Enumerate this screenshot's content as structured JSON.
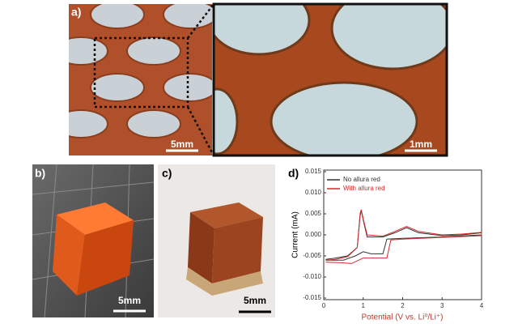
{
  "panels": {
    "a": {
      "label": "a)",
      "scale_left": "5mm",
      "scale_right": "1mm"
    },
    "b": {
      "label": "b)",
      "scale": "5mm"
    },
    "c": {
      "label": "c)",
      "scale": "5mm"
    },
    "d": {
      "label": "d)"
    }
  },
  "chart_data": {
    "type": "line",
    "xlabel": "Potential (V vs. Li⁰/Li⁺)",
    "ylabel": "Current (mA)",
    "xlim": [
      0,
      4
    ],
    "xticks": [
      0,
      1,
      2,
      3,
      4
    ],
    "ylim": [
      -0.015,
      0.015
    ],
    "yticks": [
      0.015,
      {
        "value": 0.01,
        "label": "0.010"
      },
      0.005,
      {
        "value": 0,
        "label": "0.000"
      },
      -0.005,
      {
        "value": -0.01,
        "label": "-0.010"
      },
      -0.015
    ],
    "legend": "upper left",
    "series": [
      {
        "name": "No allura red",
        "color": "#333333",
        "x": [
          0.05,
          0.3,
          0.6,
          0.85,
          0.92,
          0.95,
          1.0,
          1.1,
          1.5,
          1.8,
          2.1,
          2.4,
          3.0,
          3.5,
          4.0,
          4.0,
          3.0,
          2.0,
          1.6,
          1.5,
          1.2,
          1.0,
          0.8,
          0.5,
          0.05
        ],
        "values": [
          -0.0058,
          -0.0055,
          -0.005,
          -0.003,
          0.0045,
          0.0058,
          0.0035,
          -0.0005,
          -0.0005,
          0.0005,
          0.0017,
          0.0005,
          -0.0002,
          0.0,
          0.0005,
          0.0,
          -0.0005,
          -0.0008,
          -0.001,
          -0.0045,
          -0.0045,
          -0.004,
          -0.005,
          -0.006,
          -0.006
        ]
      },
      {
        "name": "With allura red",
        "color": "#d62728",
        "x": [
          0.05,
          0.3,
          0.6,
          0.85,
          0.92,
          0.95,
          1.0,
          1.1,
          1.5,
          1.8,
          2.1,
          2.4,
          3.0,
          3.5,
          4.0,
          4.0,
          3.0,
          2.0,
          1.7,
          1.6,
          1.3,
          1.0,
          0.7,
          0.4,
          0.05
        ],
        "values": [
          -0.006,
          -0.0058,
          -0.0052,
          -0.003,
          0.005,
          0.006,
          0.0038,
          0.0,
          -0.0003,
          0.0008,
          0.002,
          0.0008,
          0.0,
          0.0002,
          0.0006,
          -0.0002,
          -0.0006,
          -0.001,
          -0.0012,
          -0.0055,
          -0.0055,
          -0.0055,
          -0.0068,
          -0.0066,
          -0.0065
        ]
      }
    ]
  }
}
